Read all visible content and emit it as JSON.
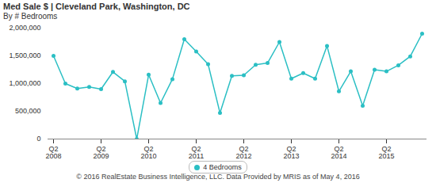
{
  "chart_data": {
    "type": "line",
    "title": "Med Sale $ | Cleveland Park, Washington, DC",
    "subtitle": "By # Bedrooms",
    "caption": "© 2016 RealEstate Business Intelligence, LLC. Data Provided by MRIS as of May 4, 2016",
    "categories": [
      "Q2\n2008",
      null,
      null,
      null,
      "Q2\n2009",
      null,
      null,
      null,
      "Q2\n2010",
      null,
      null,
      null,
      "Q2\n2011",
      null,
      null,
      null,
      "Q2\n2012",
      null,
      null,
      null,
      "Q2\n2013",
      null,
      null,
      null,
      "Q2\n2014",
      null,
      null,
      null,
      "Q2\n2015",
      null,
      null,
      null
    ],
    "series": [
      {
        "name": "4 Bedrooms",
        "color": "#2bbfc4",
        "marker": "circle",
        "values": [
          1500000,
          1000000,
          910000,
          940000,
          900000,
          1210000,
          1040000,
          0,
          1160000,
          650000,
          1080000,
          1800000,
          1580000,
          1350000,
          470000,
          1140000,
          1150000,
          1340000,
          1370000,
          1750000,
          1090000,
          1190000,
          1090000,
          1680000,
          860000,
          1220000,
          600000,
          1250000,
          1220000,
          1330000,
          1490000,
          1900000
        ]
      }
    ],
    "ylim": [
      0,
      2000000
    ],
    "yticks": [
      0,
      {
        "value": 500000,
        "label": "500,000"
      },
      {
        "value": 1000000,
        "label": "1,000,000"
      },
      {
        "value": 1500000,
        "label": "1,500,000"
      },
      {
        "value": 2000000,
        "label": "2,000,000"
      }
    ],
    "grid": false,
    "legend": "bottom"
  }
}
